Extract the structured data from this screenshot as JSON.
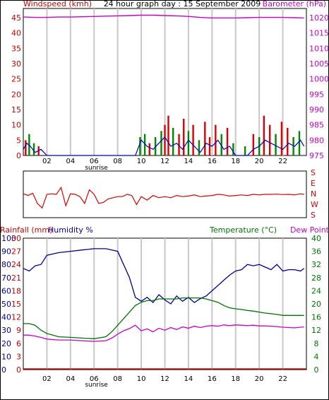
{
  "colors": {
    "grid": "#c8c8c8",
    "wind_axis": "#cc0000",
    "baro_axis": "#cc00cc",
    "wind_avg": "#0000cc",
    "wind_gust_green": "#008800",
    "wind_gust_red": "#dd0000",
    "baro_line": "#cc00cc",
    "dir_line": "#dd0000",
    "rain": "#cc0000",
    "humidity": "#000099",
    "temperature": "#007700",
    "dewpoint": "#cc00cc",
    "frame": "#000000"
  },
  "chart_data": [
    {
      "type": "line",
      "title": "24 hour graph day : 15 September 2009",
      "ylabel_left": "Windspeed (kmh)",
      "ylabel_right": "Barometer (hPa)",
      "y_left_ticks": [
        "0",
        "5",
        "10",
        "15",
        "20",
        "25",
        "30",
        "35",
        "40",
        "45"
      ],
      "y_right_ticks": [
        "975",
        "980",
        "985",
        "990",
        "995",
        "1000",
        "1005",
        "1010",
        "1015",
        "1020"
      ],
      "ylim_left": [
        0,
        48
      ],
      "ylim_right": [
        975,
        1023
      ],
      "xlim": [
        0,
        24
      ],
      "x_ticks": [
        "02",
        "04",
        "06",
        "08",
        "10",
        "12",
        "14",
        "16",
        "18",
        "20",
        "22"
      ],
      "x_tick_hours": [
        2,
        4,
        6,
        8,
        10,
        12,
        14,
        16,
        18,
        20,
        22
      ],
      "annotation": "sunrise",
      "annotation_hour": 6.2,
      "grid": true,
      "series": [
        {
          "name": "Barometer (hPa)",
          "axis": "right",
          "x": [
            0,
            1,
            2,
            3,
            4,
            5,
            6,
            7,
            8,
            9,
            10,
            11,
            12,
            13,
            14,
            15,
            16,
            17,
            18,
            19,
            20,
            21,
            22,
            23,
            23.8
          ],
          "values": [
            1020.2,
            1020.1,
            1020.1,
            1020.2,
            1020.2,
            1020.3,
            1020.4,
            1020.5,
            1020.6,
            1020.7,
            1020.8,
            1020.8,
            1020.7,
            1020.6,
            1020.4,
            1020.1,
            1019.9,
            1019.9,
            1019.9,
            1020.0,
            1020.1,
            1020.1,
            1020.1,
            1020.0,
            1019.9
          ]
        }
      ],
      "gust_bars": {
        "x": [
          0.2,
          0.5,
          0.9,
          1.3,
          9.9,
          10.3,
          10.7,
          11.2,
          11.7,
          12.0,
          12.3,
          12.7,
          13.2,
          13.6,
          14.0,
          14.4,
          14.9,
          15.4,
          15.8,
          16.3,
          16.8,
          17.3,
          17.8,
          18.8,
          19.5,
          20.0,
          20.4,
          20.9,
          21.4,
          21.9,
          22.4,
          22.9,
          23.4
        ],
        "values": [
          5,
          7,
          4,
          3,
          6,
          7,
          4,
          6,
          8,
          10,
          13,
          9,
          7,
          12,
          8,
          10,
          5,
          11,
          6,
          10,
          7,
          9,
          4,
          3,
          7,
          6,
          13,
          10,
          7,
          11,
          9,
          6,
          8
        ]
      },
      "avg_wind": {
        "x": [
          0,
          0.3,
          0.6,
          1.0,
          1.5,
          2,
          9.5,
          10,
          10.5,
          11,
          11.5,
          12,
          12.5,
          13,
          13.5,
          14,
          14.5,
          15,
          15.5,
          16,
          16.5,
          17,
          17.5,
          18,
          18.5,
          19,
          19.5,
          20,
          20.5,
          21,
          21.5,
          22,
          22.5,
          23,
          23.5,
          23.8
        ],
        "values": [
          2,
          4,
          3,
          1,
          2,
          0,
          0,
          5,
          3,
          2,
          4,
          6,
          3,
          4,
          2,
          5,
          3,
          1,
          4,
          3,
          5,
          2,
          3,
          0,
          0,
          0,
          2,
          3,
          5,
          4,
          3,
          2,
          4,
          3,
          5,
          3
        ]
      }
    },
    {
      "type": "line",
      "ylabel_right": [
        "S",
        "E",
        "N",
        "W",
        "S"
      ],
      "ylim": [
        0,
        360
      ],
      "xlim": [
        0,
        24
      ],
      "series": [
        {
          "name": "Wind direction",
          "x": [
            0,
            0.4,
            0.8,
            1.2,
            1.6,
            2.0,
            2.4,
            2.8,
            3.2,
            3.6,
            4.0,
            4.4,
            4.8,
            5.2,
            5.6,
            6.0,
            6.4,
            6.8,
            7.2,
            7.6,
            8.0,
            8.4,
            8.8,
            9.2,
            9.6,
            10,
            10.5,
            11,
            11.5,
            12,
            12.5,
            13,
            13.5,
            14,
            14.5,
            15,
            15.5,
            16,
            16.5,
            17,
            17.5,
            18,
            18.5,
            19,
            19.5,
            20,
            20.5,
            21,
            21.5,
            22,
            22.5,
            23,
            23.5,
            23.8
          ],
          "values": [
            175,
            190,
            170,
            260,
            300,
            180,
            175,
            180,
            120,
            280,
            175,
            180,
            200,
            260,
            140,
            180,
            260,
            250,
            220,
            210,
            200,
            200,
            180,
            190,
            270,
            200,
            230,
            190,
            210,
            200,
            210,
            190,
            200,
            195,
            185,
            200,
            195,
            190,
            180,
            185,
            195,
            190,
            185,
            190,
            180,
            185,
            180,
            180,
            178,
            182,
            180,
            185,
            175,
            180
          ]
        }
      ]
    },
    {
      "type": "line",
      "ylabel_left": "Rainfall (mm)",
      "ylabel_left2": "Humidity %",
      "ylabel_right": "Temperature (°C)",
      "ylabel_right2": "Dew Point",
      "rain_ticks": [
        "0",
        "3",
        "6",
        "9",
        "12",
        "15",
        "18",
        "21",
        "24",
        "27",
        "30"
      ],
      "humidity_ticks": [
        "0",
        "10",
        "20",
        "30",
        "40",
        "50",
        "60",
        "70",
        "80",
        "90",
        "100"
      ],
      "temp_ticks": [
        "0",
        "4",
        "8",
        "12",
        "16",
        "20",
        "24",
        "28",
        "32",
        "36",
        "40"
      ],
      "ylim_temp": [
        0,
        40
      ],
      "ylim_humidity": [
        0,
        100
      ],
      "xlim": [
        0,
        24
      ],
      "x_ticks": [
        "02",
        "04",
        "06",
        "08",
        "10",
        "12",
        "14",
        "16",
        "18",
        "20",
        "22"
      ],
      "x_tick_hours": [
        2,
        4,
        6,
        8,
        10,
        12,
        14,
        16,
        18,
        20,
        22
      ],
      "annotation": "sunrise",
      "annotation_hour": 6.2,
      "grid": true,
      "series": [
        {
          "name": "Humidity %",
          "axis": "humidity",
          "x": [
            0,
            0.5,
            1,
            1.5,
            2,
            3,
            4,
            5,
            6,
            7,
            7.5,
            8,
            8.5,
            9,
            9.5,
            10,
            10.5,
            11,
            11.5,
            12,
            12.5,
            13,
            13.5,
            14,
            14.5,
            15,
            15.5,
            16,
            16.5,
            17,
            17.5,
            18,
            18.5,
            19,
            19.5,
            20,
            20.5,
            21,
            21.5,
            22,
            22.5,
            23,
            23.5,
            23.8
          ],
          "values": [
            77,
            75,
            79,
            80,
            87,
            89,
            90,
            91,
            92,
            92,
            91,
            90,
            80,
            70,
            55,
            52,
            55,
            51,
            57,
            53,
            50,
            56,
            52,
            55,
            51,
            54,
            56,
            60,
            64,
            68,
            72,
            75,
            76,
            80,
            79,
            80,
            78,
            76,
            80,
            75,
            76,
            76,
            75,
            77
          ]
        },
        {
          "name": "Temperature",
          "axis": "temp",
          "x": [
            0,
            0.5,
            1,
            1.5,
            2,
            3,
            4,
            5,
            6,
            7,
            7.5,
            8,
            8.5,
            9,
            9.5,
            10,
            10.5,
            11,
            11.5,
            12,
            12.5,
            13,
            13.5,
            14,
            14.5,
            15,
            15.5,
            16,
            16.5,
            17,
            17.5,
            18,
            18.5,
            19,
            19.5,
            20,
            20.5,
            21,
            21.5,
            22,
            22.5,
            23,
            23.5,
            23.8
          ],
          "values": [
            14.0,
            14.0,
            13.5,
            12.0,
            11.0,
            10.0,
            9.8,
            9.6,
            9.4,
            10.0,
            11.5,
            13.5,
            15.5,
            17.5,
            19.5,
            20.5,
            21.0,
            21.0,
            21.5,
            21.5,
            21.5,
            21.5,
            21.8,
            21.8,
            21.8,
            21.8,
            21.5,
            21.0,
            20.5,
            19.5,
            18.8,
            18.5,
            18.3,
            18.0,
            17.8,
            17.5,
            17.2,
            17.0,
            16.8,
            16.5,
            16.5,
            16.5,
            16.5,
            16.5
          ]
        },
        {
          "name": "Dew Point",
          "axis": "temp",
          "x": [
            0,
            0.5,
            1,
            1.5,
            2,
            3,
            4,
            5,
            6,
            7,
            7.5,
            8,
            8.5,
            9,
            9.5,
            10,
            10.5,
            11,
            11.5,
            12,
            12.5,
            13,
            13.5,
            14,
            14.5,
            15,
            15.5,
            16,
            16.5,
            17,
            17.5,
            18,
            18.5,
            19,
            19.5,
            20,
            20.5,
            21,
            21.5,
            22,
            22.5,
            23,
            23.5,
            23.8
          ],
          "values": [
            10.5,
            10.5,
            10.2,
            9.8,
            9.3,
            9.0,
            9.0,
            8.8,
            8.6,
            8.8,
            9.6,
            10.8,
            11.8,
            12.5,
            13.5,
            11.8,
            12.4,
            11.5,
            12.6,
            12.0,
            12.8,
            12.2,
            13.0,
            12.6,
            13.2,
            12.8,
            13.2,
            13.4,
            13.2,
            13.6,
            13.4,
            13.6,
            13.5,
            13.4,
            13.5,
            13.3,
            13.3,
            13.2,
            13.1,
            12.9,
            12.8,
            12.7,
            12.9,
            13.0
          ]
        },
        {
          "name": "Rainfall (mm)",
          "axis": "rain",
          "x": [
            0,
            24
          ],
          "values": [
            0,
            0
          ]
        }
      ]
    }
  ]
}
